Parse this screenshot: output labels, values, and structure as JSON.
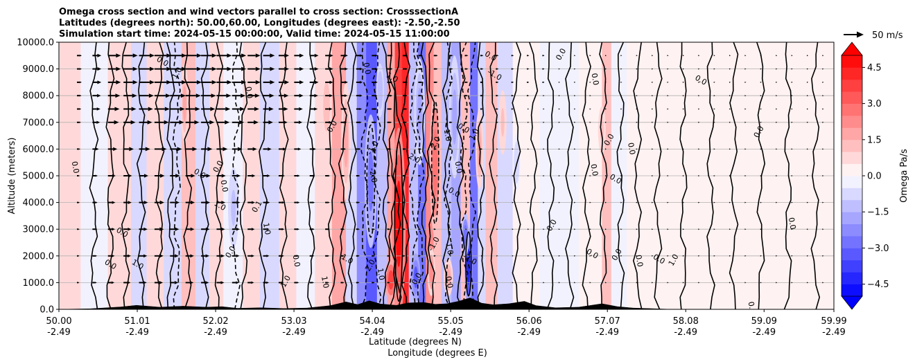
{
  "title_lines": [
    "Omega cross section and wind vectors parallel to cross section: CrosssectionA",
    "Latitudes (degrees north): 50.00,60.00, Longitudes (degrees east): -2.50,-2.50",
    "Simulation start time: 2024-05-15 00:00:00, Valid time: 2024-05-15 11:00:00"
  ],
  "chart_data": {
    "type": "heatmap",
    "subtype": "vertical cross section (filled contours + contour lines + wind vectors)",
    "ylabel": "Altitude (meters)",
    "xlabel_line1": "Latitude (degrees N)",
    "xlabel_line2": "Longitude (degrees E)",
    "ylim": [
      0,
      10000
    ],
    "xlim": [
      50.0,
      59.99
    ],
    "yticks": [
      0,
      1000,
      2000,
      3000,
      4000,
      5000,
      6000,
      7000,
      8000,
      9000,
      10000
    ],
    "ytick_labels": [
      "0.0",
      "1000.0",
      "2000.0",
      "3000.0",
      "4000.0",
      "5000.0",
      "6000.0",
      "7000.0",
      "8000.0",
      "9000.0",
      "10000.0"
    ],
    "xtick_lat": [
      "50.00",
      "51.01",
      "52.02",
      "53.03",
      "54.04",
      "55.05",
      "56.06",
      "57.07",
      "58.08",
      "59.09",
      "59.99"
    ],
    "xtick_lon": [
      "-2.49",
      "-2.49",
      "-2.49",
      "-2.49",
      "-2.49",
      "-2.49",
      "-2.49",
      "-2.49",
      "-2.49",
      "-2.49",
      "-2.49"
    ],
    "grid": "horizontal",
    "colorbar": {
      "label": "Omega Pa/s",
      "range": [
        -5.0,
        5.0
      ],
      "step": 0.5,
      "ticks": [
        -4.5,
        -3.0,
        -1.5,
        0.0,
        1.5,
        3.0,
        4.5
      ],
      "tick_labels": [
        "−4.5",
        "−3.0",
        "−1.5",
        "0.0",
        "1.5",
        "3.0",
        "4.5"
      ],
      "extend": "both",
      "colormap": "bwr"
    },
    "quiver_key": {
      "label": "50 m/s",
      "speed": 50
    },
    "omega_cells": [
      {
        "x": 50.0,
        "dx": 0.28,
        "v": 0.6
      },
      {
        "x": 50.28,
        "dx": 0.35,
        "v": -0.4
      },
      {
        "x": 50.63,
        "dx": 0.3,
        "v": 0.5
      },
      {
        "x": 50.93,
        "dx": 0.2,
        "v": -0.8
      },
      {
        "x": 51.13,
        "dx": 0.22,
        "v": 0.6
      },
      {
        "x": 51.35,
        "dx": 0.23,
        "v": -0.6
      },
      {
        "x": 51.58,
        "dx": 0.18,
        "v": 1.2
      },
      {
        "x": 51.76,
        "dx": 0.18,
        "v": -0.7
      },
      {
        "x": 51.94,
        "dx": 0.18,
        "v": 0.8
      },
      {
        "x": 52.12,
        "dx": 0.25,
        "v": -0.5
      },
      {
        "x": 52.37,
        "dx": 0.22,
        "v": 0.6
      },
      {
        "x": 52.59,
        "dx": 0.25,
        "v": -0.9
      },
      {
        "x": 52.84,
        "dx": 0.22,
        "v": 0.7
      },
      {
        "x": 53.06,
        "dx": 0.24,
        "v": -0.5
      },
      {
        "x": 53.3,
        "dx": 0.22,
        "v": 0.8
      },
      {
        "x": 53.52,
        "dx": 0.18,
        "v": 1.6
      },
      {
        "x": 53.7,
        "dx": 0.14,
        "v": -0.7
      },
      {
        "x": 53.84,
        "dx": 0.12,
        "v": -2.1
      },
      {
        "x": 53.96,
        "dx": 0.14,
        "v": -3.2
      },
      {
        "x": 54.1,
        "dx": 0.13,
        "v": -1.1
      },
      {
        "x": 54.23,
        "dx": 0.1,
        "v": 1.6
      },
      {
        "x": 54.33,
        "dx": 0.09,
        "v": 3.6
      },
      {
        "x": 54.42,
        "dx": 0.09,
        "v": 4.3
      },
      {
        "x": 54.51,
        "dx": 0.12,
        "v": -1.3
      },
      {
        "x": 54.63,
        "dx": 0.1,
        "v": -2.6
      },
      {
        "x": 54.73,
        "dx": 0.1,
        "v": 2.2
      },
      {
        "x": 54.83,
        "dx": 0.1,
        "v": 1.3
      },
      {
        "x": 54.93,
        "dx": 0.13,
        "v": -1.2
      },
      {
        "x": 55.06,
        "dx": 0.12,
        "v": -2.0
      },
      {
        "x": 55.18,
        "dx": 0.12,
        "v": 1.0
      },
      {
        "x": 55.3,
        "dx": 0.1,
        "v": -2.8
      },
      {
        "x": 55.4,
        "dx": 0.1,
        "v": -1.0
      },
      {
        "x": 55.5,
        "dx": 0.15,
        "v": 1.1
      },
      {
        "x": 55.65,
        "dx": 0.2,
        "v": -0.6
      },
      {
        "x": 55.85,
        "dx": 0.35,
        "v": 0.4
      },
      {
        "x": 56.2,
        "dx": 0.5,
        "v": -0.3
      },
      {
        "x": 56.7,
        "dx": 0.3,
        "v": 0.3
      },
      {
        "x": 57.0,
        "dx": 0.12,
        "v": 1.3
      },
      {
        "x": 57.12,
        "dx": 0.2,
        "v": -0.5
      },
      {
        "x": 57.32,
        "dx": 0.5,
        "v": 0.3
      },
      {
        "x": 57.82,
        "dx": 0.6,
        "v": 0.2
      },
      {
        "x": 58.42,
        "dx": 0.6,
        "v": 0.3
      },
      {
        "x": 59.02,
        "dx": 0.6,
        "v": 0.2
      },
      {
        "x": 59.62,
        "dx": 0.37,
        "v": 0.3
      }
    ],
    "omega_blobs": [
      {
        "x": 54.38,
        "y": 3200,
        "rx": 0.09,
        "ry": 3600,
        "v": 4.6
      },
      {
        "x": 54.28,
        "y": 1100,
        "rx": 0.08,
        "ry": 800,
        "v": 3.5
      },
      {
        "x": 54.02,
        "y": 4800,
        "rx": 0.08,
        "ry": 2500,
        "v": -2.7
      },
      {
        "x": 54.6,
        "y": 1200,
        "rx": 0.06,
        "ry": 900,
        "v": -3.4
      },
      {
        "x": 55.28,
        "y": 1600,
        "rx": 0.05,
        "ry": 1500,
        "v": -4.4
      },
      {
        "x": 55.24,
        "y": 2800,
        "rx": 0.05,
        "ry": 800,
        "v": -3.0
      },
      {
        "x": 54.85,
        "y": 5500,
        "rx": 0.07,
        "ry": 2800,
        "v": 2.8
      },
      {
        "x": 54.8,
        "y": 1400,
        "rx": 0.05,
        "ry": 900,
        "v": 2.2
      },
      {
        "x": 55.02,
        "y": 1200,
        "rx": 0.06,
        "ry": 700,
        "v": 1.6
      },
      {
        "x": 53.7,
        "y": 6300,
        "rx": 0.06,
        "ry": 2200,
        "v": 1.8
      },
      {
        "x": 54.65,
        "y": 7400,
        "rx": 0.07,
        "ry": 2000,
        "v": -2.0
      },
      {
        "x": 55.1,
        "y": 7200,
        "rx": 0.07,
        "ry": 2300,
        "v": -1.6
      },
      {
        "x": 55.42,
        "y": 6000,
        "rx": 0.05,
        "ry": 1500,
        "v": 1.6
      },
      {
        "x": 51.62,
        "y": 7700,
        "rx": 0.05,
        "ry": 1500,
        "v": 1.5
      },
      {
        "x": 52.25,
        "y": 3800,
        "rx": 0.07,
        "ry": 1500,
        "v": -1.2
      },
      {
        "x": 53.45,
        "y": 7600,
        "rx": 0.06,
        "ry": 1300,
        "v": 1.4
      },
      {
        "x": 54.14,
        "y": 8200,
        "rx": 0.05,
        "ry": 1000,
        "v": -1.5
      },
      {
        "x": 57.0,
        "y": 6700,
        "rx": 0.05,
        "ry": 900,
        "v": 1.3
      },
      {
        "x": 55.9,
        "y": 5500,
        "rx": 0.05,
        "ry": 1100,
        "v": -0.9
      },
      {
        "x": 55.72,
        "y": 7000,
        "rx": 0.05,
        "ry": 1200,
        "v": 1.2
      }
    ],
    "contour_lines": {
      "solid_x": [
        50.45,
        50.66,
        50.86,
        51.06,
        51.3,
        51.44,
        51.66,
        51.88,
        52.06,
        52.38,
        52.63,
        52.9,
        53.25,
        53.52,
        53.66,
        53.78,
        54.22,
        54.3,
        54.36,
        54.47,
        54.72,
        54.8,
        55.0,
        55.18,
        55.44,
        55.6,
        55.9,
        56.12,
        56.34,
        56.58,
        56.8,
        57.02,
        57.24,
        57.46,
        57.72,
        58.05,
        58.4,
        58.7,
        59.05,
        59.4,
        59.75
      ],
      "dashed_x": [
        53.94,
        54.1,
        54.57,
        54.66,
        55.22,
        55.32,
        55.02,
        51.52,
        52.28
      ],
      "labels": [
        {
          "x": 50.18,
          "y": 5300,
          "t": "0.0"
        },
        {
          "x": 51.32,
          "y": 9200,
          "t": "0.0"
        },
        {
          "x": 51.55,
          "y": 8800,
          "t": "1.0"
        },
        {
          "x": 52.42,
          "y": 8100,
          "t": "0.0"
        },
        {
          "x": 51.8,
          "y": 5000,
          "t": "0.0"
        },
        {
          "x": 52.08,
          "y": 5300,
          "t": "0.0"
        },
        {
          "x": 52.1,
          "y": 4600,
          "t": "0.0"
        },
        {
          "x": 52.06,
          "y": 3800,
          "t": "1.0"
        },
        {
          "x": 52.58,
          "y": 3800,
          "t": "0.1"
        },
        {
          "x": 52.65,
          "y": 3000,
          "t": "1.0"
        },
        {
          "x": 50.8,
          "y": 2800,
          "t": "0.0"
        },
        {
          "x": 52.24,
          "y": 2100,
          "t": "0.0"
        },
        {
          "x": 53.03,
          "y": 1800,
          "t": "0.0"
        },
        {
          "x": 51.0,
          "y": 1600,
          "t": "1.0"
        },
        {
          "x": 52.95,
          "y": 1000,
          "t": "1.0"
        },
        {
          "x": 53.4,
          "y": 1000,
          "t": "1.0"
        },
        {
          "x": 50.65,
          "y": 1600,
          "t": "0.0"
        },
        {
          "x": 53.55,
          "y": 6800,
          "t": "0.0"
        },
        {
          "x": 53.94,
          "y": 9000,
          "t": "0.0"
        },
        {
          "x": 54.28,
          "y": 8600,
          "t": "1.0"
        },
        {
          "x": 54.07,
          "y": 6000,
          "t": "-1.0"
        },
        {
          "x": 54.02,
          "y": 5000,
          "t": "-2.0"
        },
        {
          "x": 54.55,
          "y": 5600,
          "t": "-2.0"
        },
        {
          "x": 54.88,
          "y": 6200,
          "t": "2.0"
        },
        {
          "x": 54.98,
          "y": 6500,
          "t": "1.0"
        },
        {
          "x": 55.2,
          "y": 6700,
          "t": "0.0"
        },
        {
          "x": 55.38,
          "y": 6500,
          "t": "1.0"
        },
        {
          "x": 55.12,
          "y": 5300,
          "t": "0.0"
        },
        {
          "x": 55.08,
          "y": 4300,
          "t": "0.0"
        },
        {
          "x": 54.86,
          "y": 2400,
          "t": "-1.0"
        },
        {
          "x": 55.0,
          "y": 2300,
          "t": "-1.0"
        },
        {
          "x": 55.28,
          "y": 1800,
          "t": "-2.0"
        },
        {
          "x": 54.04,
          "y": 1600,
          "t": "2.0"
        },
        {
          "x": 54.12,
          "y": 1300,
          "t": "1.0"
        },
        {
          "x": 53.7,
          "y": 1800,
          "t": "1.0"
        },
        {
          "x": 54.64,
          "y": 1100,
          "t": "0.0"
        },
        {
          "x": 55.0,
          "y": 1000,
          "t": "0.0"
        },
        {
          "x": 55.6,
          "y": 8700,
          "t": "-1.0"
        },
        {
          "x": 56.38,
          "y": 3100,
          "t": "0.0"
        },
        {
          "x": 56.87,
          "y": 5200,
          "t": "0.0"
        },
        {
          "x": 57.16,
          "y": 4800,
          "t": "0.0"
        },
        {
          "x": 57.12,
          "y": 6300,
          "t": "0.0"
        },
        {
          "x": 57.35,
          "y": 6000,
          "t": "0.0"
        },
        {
          "x": 58.26,
          "y": 8500,
          "t": "0.0"
        },
        {
          "x": 59.05,
          "y": 6600,
          "t": "0.0"
        },
        {
          "x": 59.42,
          "y": 3200,
          "t": "0.0"
        },
        {
          "x": 56.86,
          "y": 2000,
          "t": "0.0"
        },
        {
          "x": 57.22,
          "y": 2000,
          "t": "0.0"
        },
        {
          "x": 57.45,
          "y": 1800,
          "t": "0.0"
        },
        {
          "x": 57.72,
          "y": 1800,
          "t": "0.0"
        },
        {
          "x": 57.95,
          "y": 1800,
          "t": "1.0"
        },
        {
          "x": 58.9,
          "y": 50,
          "t": "0.0"
        },
        {
          "x": 55.55,
          "y": 9400,
          "t": "0.0"
        },
        {
          "x": 56.5,
          "y": 9500,
          "t": "0.0"
        },
        {
          "x": 56.88,
          "y": 8600,
          "t": "0.0"
        }
      ]
    },
    "terrain": [
      {
        "x": 50.0,
        "h": 0
      },
      {
        "x": 50.4,
        "h": 20
      },
      {
        "x": 50.8,
        "h": 90
      },
      {
        "x": 51.0,
        "h": 150
      },
      {
        "x": 51.3,
        "h": 80
      },
      {
        "x": 51.6,
        "h": 120
      },
      {
        "x": 51.9,
        "h": 80
      },
      {
        "x": 52.1,
        "h": 100
      },
      {
        "x": 52.3,
        "h": 40
      },
      {
        "x": 52.6,
        "h": 60
      },
      {
        "x": 52.9,
        "h": 30
      },
      {
        "x": 53.2,
        "h": 50
      },
      {
        "x": 53.5,
        "h": 140
      },
      {
        "x": 53.7,
        "h": 280
      },
      {
        "x": 53.85,
        "h": 180
      },
      {
        "x": 54.0,
        "h": 320
      },
      {
        "x": 54.15,
        "h": 200
      },
      {
        "x": 54.35,
        "h": 150
      },
      {
        "x": 54.5,
        "h": 240
      },
      {
        "x": 54.7,
        "h": 260
      },
      {
        "x": 54.85,
        "h": 190
      },
      {
        "x": 55.0,
        "h": 210
      },
      {
        "x": 55.15,
        "h": 300
      },
      {
        "x": 55.3,
        "h": 430
      },
      {
        "x": 55.45,
        "h": 230
      },
      {
        "x": 55.6,
        "h": 170
      },
      {
        "x": 55.8,
        "h": 210
      },
      {
        "x": 56.0,
        "h": 300
      },
      {
        "x": 56.15,
        "h": 140
      },
      {
        "x": 56.4,
        "h": 60
      },
      {
        "x": 56.7,
        "h": 80
      },
      {
        "x": 57.0,
        "h": 210
      },
      {
        "x": 57.2,
        "h": 100
      },
      {
        "x": 57.4,
        "h": 50
      },
      {
        "x": 57.7,
        "h": 20
      },
      {
        "x": 57.9,
        "h": 0
      },
      {
        "x": 59.99,
        "h": 0
      }
    ],
    "wind": {
      "rows_altitude": [
        1000,
        2000,
        3000,
        4000,
        5000,
        6000,
        7000,
        7500,
        8000,
        8500,
        9000,
        9500
      ],
      "columns_lat": [
        50.0,
        50.2,
        50.4,
        50.6,
        50.8,
        51.0,
        51.2,
        51.4,
        51.6,
        51.8,
        52.0,
        52.2,
        52.4,
        52.6,
        52.8,
        53.0,
        53.2,
        53.4,
        53.6,
        53.8,
        54.0,
        54.2,
        54.4,
        54.6,
        54.8,
        55.0,
        55.2,
        55.4,
        55.6,
        55.8,
        56.0,
        56.2,
        56.4,
        56.6,
        56.8,
        57.0,
        57.2,
        57.4,
        57.6,
        57.8,
        58.0,
        58.2,
        58.4,
        58.6,
        58.8,
        59.0,
        59.2,
        59.4,
        59.6,
        59.8
      ],
      "speed_by_lat": [
        {
          "lat": 50.0,
          "ms": 12
        },
        {
          "lat": 50.4,
          "ms": 32
        },
        {
          "lat": 51.0,
          "ms": 42
        },
        {
          "lat": 51.8,
          "ms": 38
        },
        {
          "lat": 52.6,
          "ms": 26
        },
        {
          "lat": 53.6,
          "ms": 16
        },
        {
          "lat": 54.6,
          "ms": 10
        },
        {
          "lat": 55.6,
          "ms": 6
        },
        {
          "lat": 56.6,
          "ms": 4
        },
        {
          "lat": 58.0,
          "ms": 3
        },
        {
          "lat": 59.99,
          "ms": 2
        }
      ],
      "altitude_factor": [
        {
          "alt": 1000,
          "f": 0.5
        },
        {
          "alt": 3000,
          "f": 0.55
        },
        {
          "alt": 5000,
          "f": 0.6
        },
        {
          "alt": 7000,
          "f": 0.85
        },
        {
          "alt": 8500,
          "f": 1.0
        },
        {
          "alt": 9500,
          "f": 1.0
        }
      ]
    }
  }
}
